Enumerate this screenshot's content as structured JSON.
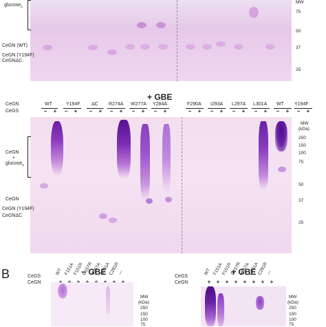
{
  "top_panel": {
    "left_labels": {
      "glucose_n": "glucose",
      "glucose_n_sub": "n",
      "cegn_wt": "CeGN (WT)",
      "cegn_y194f": "CeGN (Y194F)",
      "cegn_dc": "CeGNΔC"
    },
    "mw_header": "MW",
    "mw_markers": [
      "75",
      "50",
      "37",
      "25"
    ]
  },
  "middle_panel": {
    "title": "+ GBE",
    "row_cegn": "CeGN",
    "row_cegs": "CeGS",
    "mutants": [
      "WT",
      "Y194F",
      "ΔC",
      "R274A",
      "W277A",
      "Y284A",
      "F290A",
      "I293A",
      "L297A",
      "L301A",
      "WT",
      "Y194F"
    ],
    "signs": [
      "−",
      "+"
    ],
    "left_labels": {
      "cegn_glucose_1": "CeGN",
      "cegn_glucose_2": "+",
      "cegn_glucose_3": "glucose",
      "cegn_glucose_sub": "n",
      "cegn": "CeGN",
      "cegn_y194f": "CeGN (Y194F)",
      "cegn_dc": "CeGNΔC"
    },
    "mw_header": "MW",
    "mw_unit": "(kDa)",
    "mw_markers": [
      "250",
      "150",
      "100",
      "75",
      "50",
      "37",
      "25"
    ]
  },
  "bottom_panel": {
    "panel_letter": "B",
    "left_title": "− GBE",
    "right_title": "+ GBE",
    "row_cegs": "CeGS",
    "row_cegn": "CeGN",
    "lanes": [
      "WT",
      "F151A",
      "F151R",
      "G157R",
      "Y257A",
      "C281A",
      "C281R",
      "—"
    ],
    "plus": "+",
    "mw_header": "MW",
    "mw_unit": "(kDa)",
    "mw_markers": [
      "250",
      "150",
      "100",
      "75"
    ]
  },
  "colors": {
    "gel_purple": "#8a2fb0",
    "gel_background": "#f1def1"
  }
}
